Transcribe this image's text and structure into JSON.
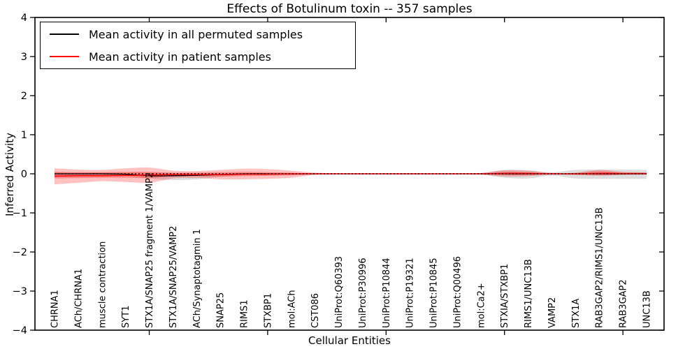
{
  "title": "Effects of Botulinum toxin -- 357 samples",
  "legend": {
    "items": [
      {
        "label": "Mean activity in all permuted samples",
        "color": "#000000"
      },
      {
        "label": "Mean activity in patient samples",
        "color": "#ff0000"
      }
    ]
  },
  "chart_data": {
    "type": "line",
    "title": "Effects of Botulinum toxin -- 357 samples",
    "xlabel": "Cellular Entities",
    "ylabel": "Inferred Activity",
    "ylim": [
      -4,
      4
    ],
    "ytick_labels": [
      "4",
      "3",
      "2",
      "1",
      "0",
      "−1",
      "−2",
      "−3",
      "−4"
    ],
    "x_major_ticks": [
      5,
      10,
      15,
      20,
      25
    ],
    "grid": false,
    "legend_position": "upper left",
    "zero_line": 0,
    "categories": [
      "CHRNA1",
      "ACh/CHRNA1",
      "muscle contraction",
      "SYT1",
      "STX1A/SNAP25 fragment 1/VAMP2",
      "STX1A/SNAP25/VAMP2",
      "ACh/Synaptotagmin 1",
      "SNAP25",
      "RIMS1",
      "STXBP1",
      "mol:ACh",
      "CST086",
      "UniProt:Q60393",
      "UniProt:P30996",
      "UniProt:P10844",
      "UniProt:P19321",
      "UniProt:P10845",
      "UniProt:Q00496",
      "mol:Ca2+",
      "STXIA/STXBP1",
      "RIMS1/UNC13B",
      "VAMP2",
      "STX1A",
      "RAB3GAP2/RIMS1/UNC13B",
      "RAB3GAP2",
      "UNC13B"
    ],
    "series": [
      {
        "name": "Mean activity in all permuted samples",
        "color": "#000000",
        "values": [
          0,
          0,
          0,
          -0.01,
          -0.05,
          -0.05,
          -0.04,
          -0.02,
          0,
          0,
          0,
          0,
          0,
          0,
          0,
          0,
          0,
          0,
          0,
          0,
          0,
          0,
          0,
          0,
          0,
          0
        ]
      },
      {
        "name": "Mean activity in patient samples",
        "color": "#ff0000",
        "values": [
          -0.06,
          -0.05,
          -0.05,
          -0.04,
          -0.03,
          -0.02,
          -0.02,
          -0.02,
          -0.01,
          -0.01,
          0,
          0,
          0,
          0,
          0,
          0,
          0,
          0,
          0,
          0.01,
          0.01,
          0,
          0,
          0.01,
          0.01,
          0.01
        ]
      }
    ],
    "bands": [
      {
        "name": "permuted-samples-range",
        "color": "rgba(0,0,0,0.13)",
        "upper": [
          0.04,
          0.03,
          0.03,
          0.03,
          0.03,
          0.02,
          0.02,
          0.02,
          0.01,
          0.01,
          0.01,
          0.01,
          0.01,
          0.01,
          0.01,
          0.01,
          0.01,
          0.01,
          0.02,
          0.1,
          0.09,
          0.04,
          0.1,
          0.11,
          0.11,
          0.1
        ],
        "lower": [
          -0.08,
          -0.06,
          -0.06,
          -0.05,
          -0.12,
          -0.16,
          -0.14,
          -0.08,
          -0.03,
          -0.02,
          -0.01,
          -0.01,
          -0.01,
          -0.01,
          -0.01,
          -0.01,
          -0.01,
          -0.01,
          -0.02,
          -0.1,
          -0.12,
          -0.05,
          -0.12,
          -0.13,
          -0.13,
          -0.13
        ]
      },
      {
        "name": "patient-samples-range",
        "color": "rgba(255,0,0,0.24)",
        "upper": [
          0.14,
          0.11,
          0.1,
          0.14,
          0.16,
          0.08,
          0.07,
          0.1,
          0.13,
          0.12,
          0.08,
          0.03,
          0.01,
          0.01,
          0.01,
          0.01,
          0.01,
          0.01,
          0.02,
          0.09,
          0.08,
          0.02,
          0.03,
          0.1,
          0.05,
          0.03
        ],
        "lower": [
          -0.27,
          -0.23,
          -0.19,
          -0.21,
          -0.23,
          -0.12,
          -0.11,
          -0.14,
          -0.14,
          -0.13,
          -0.1,
          -0.03,
          -0.01,
          -0.01,
          -0.01,
          -0.01,
          -0.01,
          -0.01,
          -0.02,
          -0.07,
          -0.06,
          -0.02,
          -0.03,
          -0.05,
          -0.03,
          -0.02
        ]
      },
      {
        "name": "patient-samples-inner-range",
        "color": "rgba(255,0,0,0.30)",
        "upper": [
          0.05,
          0.04,
          0.04,
          0.05,
          0.05,
          0.03,
          0.03,
          0.04,
          0.05,
          0.04,
          0.03,
          0.01,
          0.005,
          0.005,
          0.005,
          0.005,
          0.005,
          0.005,
          0.01,
          0.05,
          0.04,
          0.01,
          0.02,
          0.06,
          0.02,
          0.01
        ],
        "lower": [
          -0.12,
          -0.11,
          -0.1,
          -0.1,
          -0.11,
          -0.07,
          -0.06,
          -0.07,
          -0.06,
          -0.05,
          -0.04,
          -0.01,
          -0.005,
          -0.005,
          -0.005,
          -0.005,
          -0.005,
          -0.005,
          -0.01,
          -0.03,
          -0.03,
          -0.01,
          -0.02,
          -0.03,
          -0.02,
          -0.01
        ]
      }
    ]
  }
}
